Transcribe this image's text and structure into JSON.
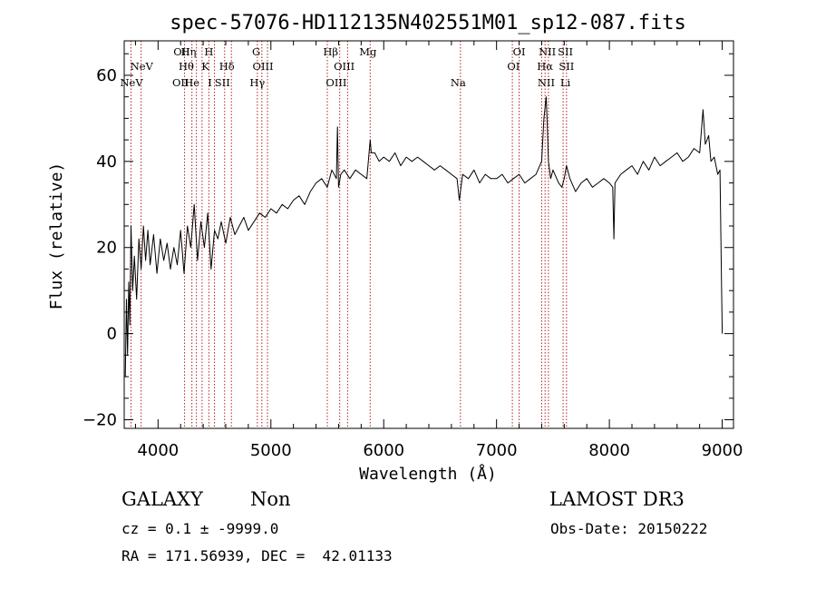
{
  "chart_data": {
    "type": "line",
    "title": "spec-57076-HD112135N402551M01_sp12-087.fits",
    "xlabel": "Wavelength (Å)",
    "ylabel": "Flux (relative)",
    "xlim": [
      3700,
      9100
    ],
    "ylim": [
      -22,
      68
    ],
    "xticks": [
      4000,
      5000,
      6000,
      7000,
      8000,
      9000
    ],
    "yticks": [
      -20,
      0,
      20,
      40,
      60
    ],
    "grid": false,
    "spectral_lines": [
      {
        "label": "NeV",
        "x": 3765,
        "row": 2
      },
      {
        "label": "NeV",
        "x": 3855,
        "row": 1
      },
      {
        "label": "OII",
        "x": 4210,
        "row": 0
      },
      {
        "label": "Hη",
        "x": 4270,
        "row": 0
      },
      {
        "label": "Hθ",
        "x": 4250,
        "row": 1
      },
      {
        "label": "OII",
        "x": 4200,
        "row": 2
      },
      {
        "label": "He",
        "x": 4300,
        "row": 2
      },
      {
        "label": "H",
        "x": 4450,
        "row": 0
      },
      {
        "label": "K",
        "x": 4420,
        "row": 1
      },
      {
        "label": "I",
        "x": 4460,
        "row": 2
      },
      {
        "label": "Hδ",
        "x": 4610,
        "row": 1
      },
      {
        "label": "SII",
        "x": 4570,
        "row": 2
      },
      {
        "label": "G",
        "x": 4870,
        "row": 0
      },
      {
        "label": "OIII",
        "x": 4930,
        "row": 1
      },
      {
        "label": "Hγ",
        "x": 4880,
        "row": 2
      },
      {
        "label": "Hβ",
        "x": 5530,
        "row": 0
      },
      {
        "label": "OIII",
        "x": 5650,
        "row": 1
      },
      {
        "label": "OIII",
        "x": 5580,
        "row": 2
      },
      {
        "label": "Mg",
        "x": 5860,
        "row": 0
      },
      {
        "label": "Na",
        "x": 6660,
        "row": 2
      },
      {
        "label": "OI",
        "x": 7200,
        "row": 0
      },
      {
        "label": "OI",
        "x": 7150,
        "row": 1
      },
      {
        "label": "NII",
        "x": 7450,
        "row": 0
      },
      {
        "label": "Hα",
        "x": 7430,
        "row": 1
      },
      {
        "label": "NII",
        "x": 7440,
        "row": 2
      },
      {
        "label": "SII",
        "x": 7610,
        "row": 0
      },
      {
        "label": "SII",
        "x": 7620,
        "row": 1
      },
      {
        "label": "Li",
        "x": 7610,
        "row": 2
      }
    ],
    "line_markers_x": [
      3760,
      3850,
      4235,
      4300,
      4340,
      4390,
      4450,
      4500,
      4590,
      4650,
      4880,
      4920,
      4970,
      5500,
      5610,
      5680,
      5880,
      6680,
      7140,
      7200,
      7400,
      7430,
      7460,
      7590,
      7620
    ],
    "series": [
      {
        "x": [
          3710,
          3720,
          3730,
          3740,
          3750,
          3760,
          3775,
          3790,
          3810,
          3830,
          3850,
          3870,
          3890,
          3910,
          3930,
          3960,
          3990,
          4020,
          4050,
          4080,
          4110,
          4140,
          4170,
          4200,
          4230,
          4260,
          4290,
          4320,
          4350,
          4380,
          4410,
          4440,
          4470,
          4500,
          4530,
          4560,
          4600,
          4640,
          4680,
          4720,
          4760,
          4800,
          4850,
          4900,
          4950,
          5000,
          5050,
          5100,
          5150,
          5200,
          5250,
          5300,
          5350,
          5400,
          5450,
          5500,
          5540,
          5580,
          5590,
          5600,
          5620,
          5650,
          5700,
          5750,
          5800,
          5850,
          5880,
          5890,
          5920,
          5960,
          6000,
          6050,
          6100,
          6150,
          6200,
          6250,
          6300,
          6350,
          6400,
          6450,
          6500,
          6550,
          6600,
          6650,
          6670,
          6700,
          6750,
          6800,
          6850,
          6900,
          6950,
          7000,
          7050,
          7100,
          7150,
          7200,
          7250,
          7300,
          7350,
          7400,
          7420,
          7440,
          7450,
          7460,
          7480,
          7500,
          7550,
          7580,
          7600,
          7620,
          7650,
          7700,
          7750,
          7800,
          7850,
          7900,
          7950,
          8000,
          8030,
          8040,
          8050,
          8100,
          8150,
          8200,
          8250,
          8300,
          8350,
          8400,
          8450,
          8500,
          8550,
          8600,
          8650,
          8700,
          8750,
          8800,
          8830,
          8850,
          8880,
          8900,
          8930,
          8960,
          8980,
          8995,
          9000
        ],
        "y": [
          -10,
          8,
          -5,
          12,
          2,
          25,
          10,
          18,
          8,
          22,
          15,
          25,
          17,
          24,
          16,
          23,
          14,
          22,
          17,
          21,
          15,
          20,
          16,
          24,
          14,
          25,
          20,
          30,
          17,
          26,
          20,
          28,
          15,
          24,
          22,
          26,
          21,
          27,
          23,
          25,
          27,
          24,
          26,
          28,
          27,
          29,
          28,
          30,
          29,
          31,
          32,
          30,
          33,
          35,
          36,
          34,
          38,
          36,
          48,
          34,
          37,
          38,
          36,
          38,
          37,
          36,
          45,
          42,
          42,
          40,
          41,
          40,
          42,
          39,
          41,
          40,
          41,
          40,
          39,
          38,
          39,
          38,
          37,
          36,
          31,
          37,
          36,
          38,
          35,
          37,
          36,
          36,
          37,
          35,
          36,
          37,
          35,
          36,
          37,
          40,
          50,
          55,
          48,
          40,
          36,
          38,
          35,
          34,
          36,
          39,
          36,
          33,
          35,
          36,
          34,
          35,
          36,
          35,
          34,
          22,
          35,
          37,
          38,
          39,
          37,
          40,
          38,
          41,
          39,
          40,
          41,
          42,
          40,
          41,
          43,
          42,
          52,
          44,
          46,
          40,
          41,
          37,
          38,
          10,
          0
        ]
      }
    ]
  },
  "info": {
    "class": "GALAXY",
    "subclass": "Non",
    "survey": "LAMOST DR3",
    "cz": "cz = 0.1 ± -9999.0",
    "obs_date": "Obs-Date: 20150222",
    "radec": "RA = 171.56939, DEC =  42.01133"
  }
}
